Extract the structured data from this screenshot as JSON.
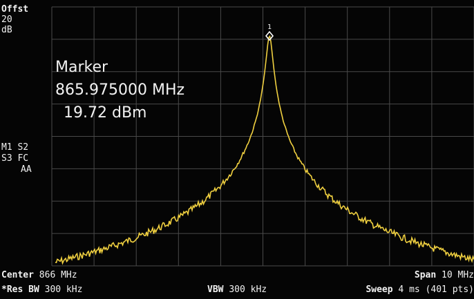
{
  "left_panel": {
    "offset_label": "Offst",
    "offset_value": "20",
    "offset_unit": "dB",
    "status_1": "M1 S2",
    "status_2": "S3 FC",
    "status_3": "AA"
  },
  "marker_readout": {
    "title": "Marker",
    "frequency": "865.975000 MHz",
    "amplitude": "19.72 dBm"
  },
  "marker_label": "1",
  "footer": {
    "center_label": "Center",
    "center_value": "866 MHz",
    "span_label": "Span",
    "span_value": "10 MHz",
    "rbw_label": "*Res BW",
    "rbw_value": "300 kHz",
    "vbw_label": "VBW",
    "vbw_value": "300 kHz",
    "sweep_label": "Sweep",
    "sweep_value": "4 ms (401 pts)"
  }
}
